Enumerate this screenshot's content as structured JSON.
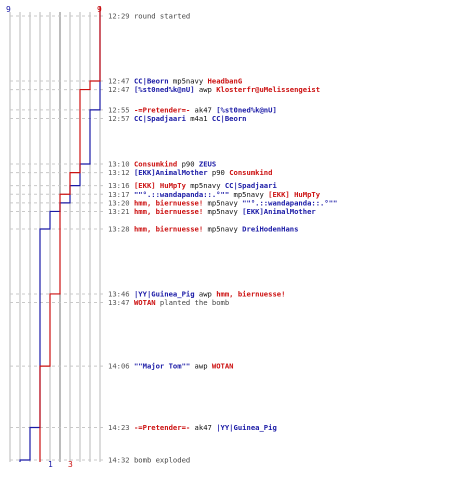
{
  "colors": {
    "team_blue": "#1a1aa6",
    "team_red": "#cc1111",
    "time": "#555555",
    "neutral": "#444444",
    "weapon": "#111111"
  },
  "chart_data": {
    "type": "line",
    "start_time": "12:29",
    "end_time": "14:32",
    "counts": {
      "blue_start": "9",
      "red_start": "9",
      "blue_end": "1",
      "red_end": "3"
    },
    "series": [
      {
        "team": "blue",
        "steps": [
          9,
          8,
          8,
          7,
          6,
          5,
          4,
          3,
          2,
          1
        ]
      },
      {
        "team": "red",
        "steps": [
          9,
          9,
          8,
          7,
          6,
          5,
          4,
          3
        ]
      }
    ]
  },
  "events": [
    {
      "time": "12:29",
      "parts": [
        {
          "t": "round started",
          "c": "neutral"
        }
      ],
      "blue": 9,
      "red": 9
    },
    {
      "time": "12:47",
      "parts": [
        {
          "t": "CC|Beorn",
          "c": "blue"
        },
        {
          "t": " mp5navy ",
          "c": "weapon"
        },
        {
          "t": "HeadbanG",
          "c": "red"
        }
      ],
      "blue": 9,
      "red": 8
    },
    {
      "time": "12:47",
      "parts": [
        {
          "t": "[%st0ned%k@nU]",
          "c": "blue"
        },
        {
          "t": " awp ",
          "c": "weapon"
        },
        {
          "t": "Klosterfr@uMelissengeist",
          "c": "red"
        }
      ],
      "blue": 9,
      "red": 7
    },
    {
      "time": "12:55",
      "parts": [
        {
          "t": "-=Pretender=-",
          "c": "red"
        },
        {
          "t": " ak47 ",
          "c": "weapon"
        },
        {
          "t": "[%st0ned%k@nU]",
          "c": "blue"
        }
      ],
      "blue": 8,
      "red": 7
    },
    {
      "time": "12:57",
      "parts": [
        {
          "t": "CC|Spadjaari",
          "c": "blue"
        },
        {
          "t": " m4a1 ",
          "c": "weapon"
        },
        {
          "t": "CC|Beorn",
          "c": "blue"
        }
      ],
      "blue": 8,
      "red": 7
    },
    {
      "time": "13:10",
      "parts": [
        {
          "t": "Consumkind",
          "c": "red"
        },
        {
          "t": " p90 ",
          "c": "weapon"
        },
        {
          "t": "ZEUS",
          "c": "blue"
        }
      ],
      "blue": 7,
      "red": 7
    },
    {
      "time": "13:12",
      "parts": [
        {
          "t": "[EKK]AnimalMother",
          "c": "blue"
        },
        {
          "t": " p90 ",
          "c": "weapon"
        },
        {
          "t": "Consumkind",
          "c": "red"
        }
      ],
      "blue": 7,
      "red": 6
    },
    {
      "time": "13:16",
      "parts": [
        {
          "t": "[EKK] HuMpTy",
          "c": "red"
        },
        {
          "t": " mp5navy ",
          "c": "weapon"
        },
        {
          "t": "CC|Spadjaari",
          "c": "blue"
        }
      ],
      "blue": 6,
      "red": 6
    },
    {
      "time": "13:17",
      "parts": [
        {
          "t": "\"\"°.::wandapanda::.°\"\"",
          "c": "blue"
        },
        {
          "t": " mp5navy ",
          "c": "weapon"
        },
        {
          "t": "[EKK] HuMpTy",
          "c": "red"
        }
      ],
      "blue": 6,
      "red": 5
    },
    {
      "time": "13:20",
      "parts": [
        {
          "t": "hmm, biernuesse!",
          "c": "red"
        },
        {
          "t": " mp5navy ",
          "c": "weapon"
        },
        {
          "t": "\"\"°.::wandapanda::.°\"\"",
          "c": "blue"
        }
      ],
      "blue": 5,
      "red": 5
    },
    {
      "time": "13:21",
      "parts": [
        {
          "t": "hmm, biernuesse!",
          "c": "red"
        },
        {
          "t": " mp5navy ",
          "c": "weapon"
        },
        {
          "t": "[EKK]AnimalMother",
          "c": "blue"
        }
      ],
      "blue": 4,
      "red": 5
    },
    {
      "time": "13:28",
      "parts": [
        {
          "t": "hmm, biernuesse!",
          "c": "red"
        },
        {
          "t": " mp5navy ",
          "c": "weapon"
        },
        {
          "t": "DreiHodenHans",
          "c": "blue"
        }
      ],
      "blue": 3,
      "red": 5
    },
    {
      "time": "13:46",
      "parts": [
        {
          "t": "|YY|Guinea_Pig",
          "c": "blue"
        },
        {
          "t": " awp ",
          "c": "weapon"
        },
        {
          "t": "hmm, biernuesse!",
          "c": "red"
        }
      ],
      "blue": 3,
      "red": 4
    },
    {
      "time": "13:47",
      "parts": [
        {
          "t": "WOTAN",
          "c": "red"
        },
        {
          "t": " planted the bomb",
          "c": "neutral"
        }
      ],
      "blue": 3,
      "red": 4
    },
    {
      "time": "14:06",
      "parts": [
        {
          "t": "\"\"Major Tom\"\"",
          "c": "blue"
        },
        {
          "t": " awp ",
          "c": "weapon"
        },
        {
          "t": "WOTAN",
          "c": "red"
        }
      ],
      "blue": 3,
      "red": 3
    },
    {
      "time": "14:23",
      "parts": [
        {
          "t": "-=Pretender=-",
          "c": "red"
        },
        {
          "t": " ak47 ",
          "c": "weapon"
        },
        {
          "t": "|YY|Guinea_Pig",
          "c": "blue"
        }
      ],
      "blue": 2,
      "red": 3
    },
    {
      "time": "14:32",
      "parts": [
        {
          "t": "bomb exploded",
          "c": "neutral"
        }
      ],
      "blue": 1,
      "red": 3
    }
  ]
}
